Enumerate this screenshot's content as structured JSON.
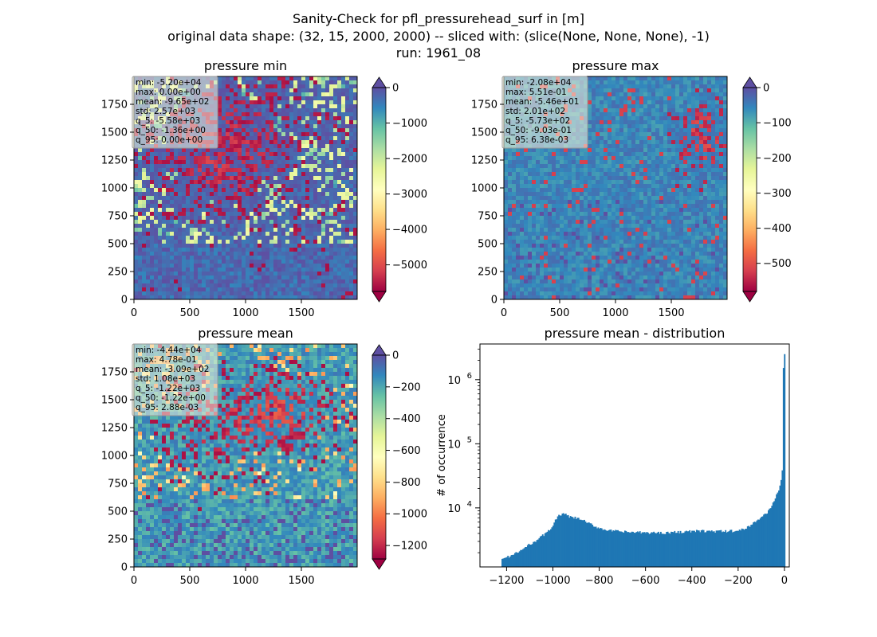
{
  "figure": {
    "title_lines": [
      "Sanity-Check for pfl_pressurehead_surf in [m]",
      "original data shape: (32, 15, 2000, 2000) -- sliced with: (slice(None, None, None), -1)",
      "run: 1961_08"
    ]
  },
  "colormap": "Spectral",
  "colors": {
    "cmap_stops": [
      "#9e0142",
      "#d53e4f",
      "#f46d43",
      "#fdae61",
      "#fee08b",
      "#ffffbf",
      "#e6f598",
      "#abdda4",
      "#66c2a5",
      "#3288bd",
      "#5e4fa2"
    ],
    "histogram_bar": "#1f77b4",
    "stat_box_bg": "#f5f5dc",
    "over_color": "#5e4fa2",
    "under_color": "#9e0142"
  },
  "chart_data": [
    {
      "type": "heatmap",
      "title": "pressure min",
      "xlim": [
        0,
        2000
      ],
      "ylim": [
        0,
        2000
      ],
      "xticks": [
        0,
        500,
        1000,
        1500
      ],
      "yticks": [
        0,
        250,
        500,
        750,
        1000,
        1250,
        1500,
        1750
      ],
      "colorbar": {
        "vmin": -5750,
        "vmax": 0,
        "ticks": [
          0,
          -1000,
          -2000,
          -3000,
          -4000,
          -5000
        ],
        "extend_top": true,
        "extend_bottom": true
      },
      "stats": [
        "min: -5.20e+04",
        "max: 0.00e+00",
        "mean: -9.65e+02",
        "std: 2.57e+03",
        "q_5: -5.58e+03",
        "q_50: -1.36e+00",
        "q_95: 0.00e+00"
      ]
    },
    {
      "type": "heatmap",
      "title": "pressure max",
      "xlim": [
        0,
        2000
      ],
      "ylim": [
        0,
        2000
      ],
      "xticks": [
        0,
        500,
        1000,
        1500
      ],
      "yticks": [
        0,
        250,
        500,
        750,
        1000,
        1250,
        1500,
        1750
      ],
      "colorbar": {
        "vmin": -580,
        "vmax": 0,
        "ticks": [
          0,
          -100,
          -200,
          -300,
          -400,
          -500
        ],
        "extend_top": true,
        "extend_bottom": true
      },
      "stats": [
        "min: -2.08e+04",
        "max: 5.51e-01",
        "mean: -5.46e+01",
        "std: 2.01e+02",
        "q_5: -5.73e+02",
        "q_50: -9.03e-01",
        "q_95: 6.38e-03"
      ]
    },
    {
      "type": "heatmap",
      "title": "pressure mean",
      "xlim": [
        0,
        2000
      ],
      "ylim": [
        0,
        2000
      ],
      "xticks": [
        0,
        500,
        1000,
        1500
      ],
      "yticks": [
        0,
        250,
        500,
        750,
        1000,
        1250,
        1500,
        1750
      ],
      "colorbar": {
        "vmin": -1285,
        "vmax": 0,
        "ticks": [
          0,
          -200,
          -400,
          -600,
          -800,
          -1000,
          -1200
        ],
        "extend_top": true,
        "extend_bottom": true
      },
      "stats": [
        "min: -4.44e+04",
        "max: 4.78e-01",
        "mean: -3.09e+02",
        "std: 1.08e+03",
        "q_5: -1.22e+03",
        "q_50: -1.22e+00",
        "q_95: 2.88e-03"
      ]
    },
    {
      "type": "bar",
      "title": "pressure mean - distribution",
      "xlabel": "",
      "ylabel": "# of occurrence",
      "xlim": [
        -1315,
        21
      ],
      "ylim": [
        1200,
        3600000
      ],
      "yscale": "log",
      "xticks": [
        -1200,
        -1000,
        -800,
        -600,
        -400,
        -200,
        0
      ],
      "yticks": [
        {
          "value": 10000,
          "label": "10^4"
        },
        {
          "value": 100000,
          "label": "10^5"
        },
        {
          "value": 1000000,
          "label": "10^6"
        }
      ],
      "profile": [
        [
          -1220,
          1600
        ],
        [
          -1200,
          1700
        ],
        [
          -1180,
          1800
        ],
        [
          -1160,
          1950
        ],
        [
          -1140,
          2150
        ],
        [
          -1120,
          2400
        ],
        [
          -1100,
          2700
        ],
        [
          -1080,
          3000
        ],
        [
          -1060,
          3350
        ],
        [
          -1040,
          3800
        ],
        [
          -1020,
          4300
        ],
        [
          -1005,
          5100
        ],
        [
          -990,
          6300
        ],
        [
          -978,
          7300
        ],
        [
          -965,
          7900
        ],
        [
          -955,
          8000
        ],
        [
          -945,
          7800
        ],
        [
          -930,
          7300
        ],
        [
          -910,
          7000
        ],
        [
          -890,
          6800
        ],
        [
          -870,
          6400
        ],
        [
          -850,
          5800
        ],
        [
          -830,
          5400
        ],
        [
          -810,
          5000
        ],
        [
          -790,
          4750
        ],
        [
          -770,
          4550
        ],
        [
          -750,
          4400
        ],
        [
          -720,
          4300
        ],
        [
          -680,
          4200
        ],
        [
          -640,
          4150
        ],
        [
          -600,
          4100
        ],
        [
          -560,
          4100
        ],
        [
          -520,
          4100
        ],
        [
          -480,
          4150
        ],
        [
          -440,
          4250
        ],
        [
          -400,
          4300
        ],
        [
          -370,
          4350
        ],
        [
          -340,
          4350
        ],
        [
          -300,
          4300
        ],
        [
          -260,
          4300
        ],
        [
          -230,
          4350
        ],
        [
          -200,
          4400
        ],
        [
          -180,
          4600
        ],
        [
          -160,
          5000
        ],
        [
          -140,
          5600
        ],
        [
          -120,
          6300
        ],
        [
          -100,
          7100
        ],
        [
          -80,
          8100
        ],
        [
          -60,
          10000
        ],
        [
          -45,
          13000
        ],
        [
          -30,
          17000
        ],
        [
          -20,
          22000
        ],
        [
          -12,
          28000
        ],
        [
          -8,
          45000
        ],
        [
          -4,
          2500000
        ],
        [
          0,
          2500000
        ]
      ]
    }
  ]
}
